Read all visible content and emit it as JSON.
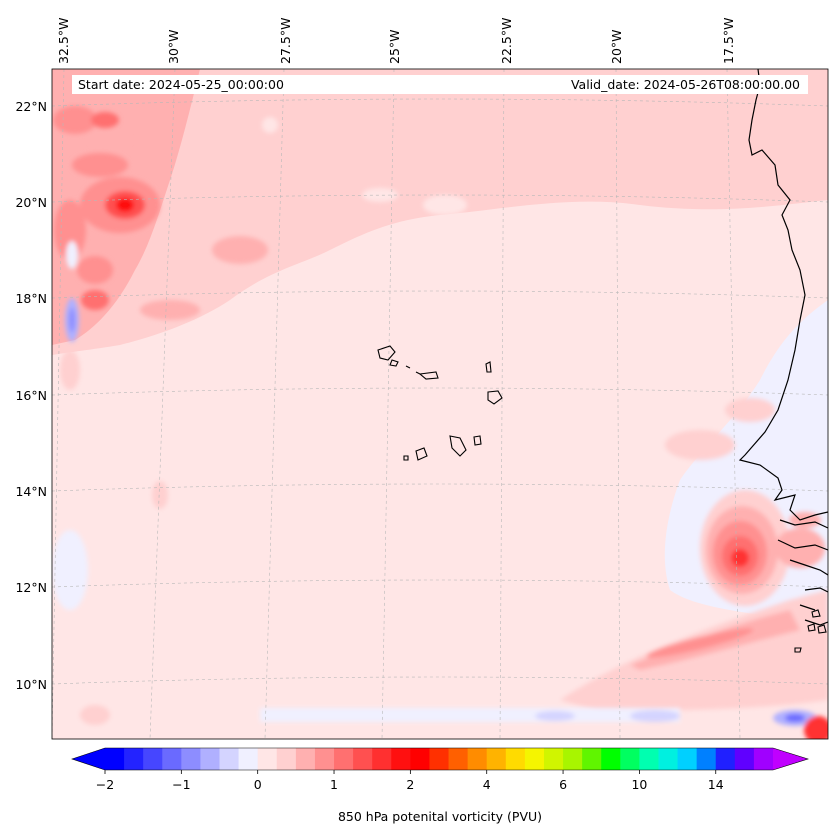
{
  "header": {
    "start_date": "Start date: 2024-05-25_00:00:00",
    "valid_date": "Valid_date: 2024-05-26T08:00:00.00"
  },
  "map": {
    "lon_labels": [
      "32.5°W",
      "30°W",
      "27.5°W",
      "25°W",
      "22.5°W",
      "20°W",
      "17.5°W"
    ],
    "lat_labels": [
      "22°N",
      "20°N",
      "18°N",
      "16°N",
      "14°N",
      "12°N",
      "10°N"
    ],
    "lon_range": [
      -32.6,
      -15.5
    ],
    "lat_range": [
      8.9,
      22.8
    ],
    "gridlines": true
  },
  "colorbar": {
    "ticks": [
      "−2",
      "−1",
      "0",
      "1",
      "2",
      "4",
      "6",
      "10",
      "14"
    ],
    "label": "850 hPa potenital vorticity (PVU)",
    "colors": [
      "#0000ff",
      "#2323ff",
      "#4646ff",
      "#6a6aff",
      "#8d8dff",
      "#b0b0ff",
      "#d4d4ff",
      "#f0f0ff",
      "#ffe6e6",
      "#ffd0d0",
      "#ffb0b0",
      "#ff9090",
      "#ff7070",
      "#ff5050",
      "#ff3030",
      "#ff1010",
      "#ff0000",
      "#ff3000",
      "#ff6000",
      "#ff8c00",
      "#ffb300",
      "#ffdb00",
      "#f5f500",
      "#d0f500",
      "#a8f500",
      "#60f500",
      "#00ff00",
      "#00ff60",
      "#00ffb0",
      "#00f0e0",
      "#00d0ff",
      "#0080ff",
      "#2020ff",
      "#6000ff",
      "#a000ff"
    ],
    "extend_low": "#0000ff",
    "extend_high": "#c000ff"
  }
}
